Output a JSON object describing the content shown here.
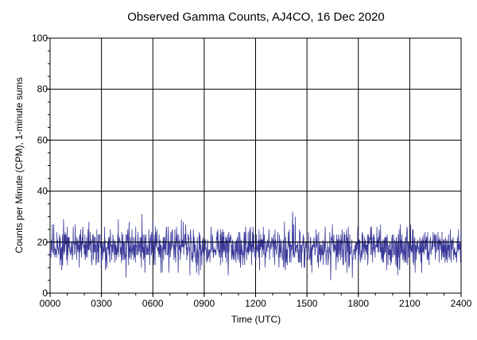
{
  "chart_data": {
    "type": "line",
    "title": "Observed Gamma Counts, AJ4CO, 16 Dec 2020",
    "xlabel": "Time (UTC)",
    "ylabel": "Counts per Minute (CPM), 1-minute sums",
    "x_tick_labels": [
      "0000",
      "0300",
      "0600",
      "0900",
      "1200",
      "1500",
      "1800",
      "2100",
      "2400"
    ],
    "y_tick_labels": [
      "0",
      "20",
      "40",
      "60",
      "80",
      "100"
    ],
    "xlim_minutes": [
      0,
      1440
    ],
    "ylim": [
      0,
      100
    ],
    "grid": true,
    "reference_line_cpm": 20,
    "series": [
      {
        "color": "#3a3a9a",
        "sample_interval_minutes": 1,
        "mean_cpm": 18,
        "typical_range_cpm": [
          10,
          26
        ],
        "min_cpm": 5,
        "max_cpm": 34
      }
    ]
  },
  "colors": {
    "series": "#3a3a9a",
    "grid": "#000000",
    "plot_background": "#ffffff",
    "reference_line": "#000000"
  }
}
